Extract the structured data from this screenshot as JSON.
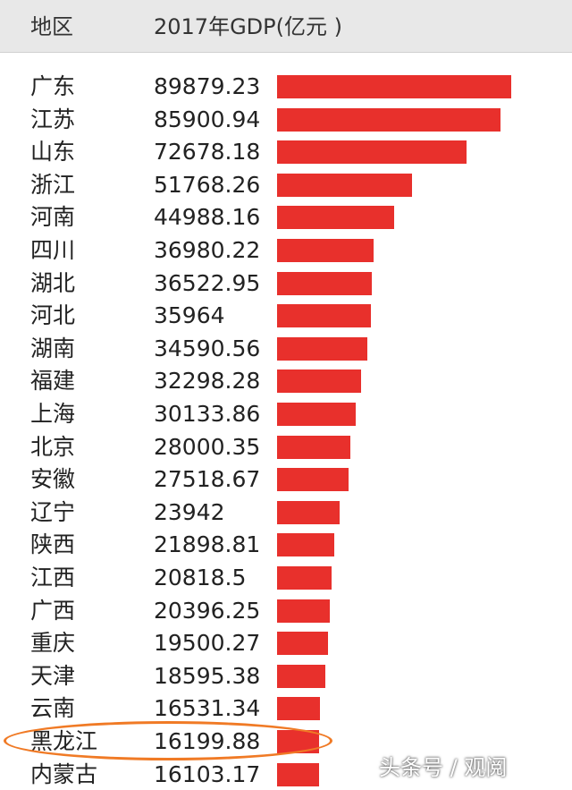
{
  "chart_data": {
    "type": "bar",
    "orientation": "horizontal",
    "header": {
      "region_label": "地区",
      "value_label": "2017年GDP(亿元 )"
    },
    "categories": [
      "广东",
      "江苏",
      "山东",
      "浙江",
      "河南",
      "四川",
      "湖北",
      "河北",
      "湖南",
      "福建",
      "上海",
      "北京",
      "安徽",
      "辽宁",
      "陕西",
      "江西",
      "广西",
      "重庆",
      "天津",
      "云南",
      "黑龙江",
      "内蒙古"
    ],
    "value_labels": [
      "89879.23",
      "85900.94",
      "72678.18",
      "51768.26",
      "44988.16",
      "36980.22",
      "36522.95",
      "35964",
      "34590.56",
      "32298.28",
      "30133.86",
      "28000.35",
      "27518.67",
      "23942",
      "21898.81",
      "20818.5",
      "20396.25",
      "19500.27",
      "18595.38",
      "16531.34",
      "16199.88",
      "16103.17"
    ],
    "values": [
      89879.23,
      85900.94,
      72678.18,
      51768.26,
      44988.16,
      36980.22,
      36522.95,
      35964,
      34590.56,
      32298.28,
      30133.86,
      28000.35,
      27518.67,
      23942,
      21898.81,
      20818.5,
      20396.25,
      19500.27,
      18595.38,
      16531.34,
      16199.88,
      16103.17
    ],
    "highlighted_category": "黑龙江",
    "bar_color": "#e8302c",
    "highlight_color": "#f07a25"
  },
  "watermark": "头条号 / 观阅"
}
